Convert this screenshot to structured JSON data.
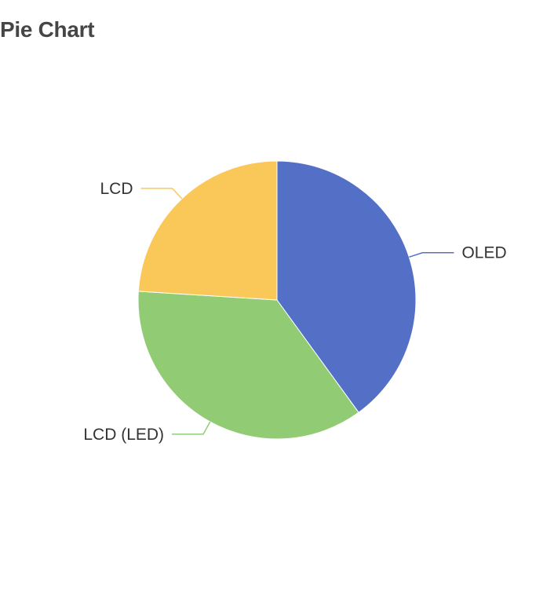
{
  "chart_data": {
    "type": "pie",
    "title": "Pie Chart",
    "categories": [
      "OLED",
      "LCD (LED)",
      "LCD"
    ],
    "values": [
      40,
      36,
      24
    ],
    "colors": [
      "#5470c6",
      "#91cc75",
      "#fac858"
    ]
  }
}
